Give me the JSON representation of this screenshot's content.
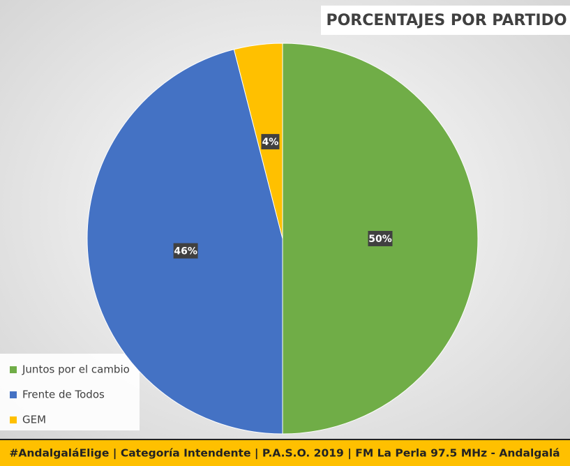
{
  "chart_data": {
    "type": "pie",
    "title": "PORCENTAJES POR PARTIDO",
    "categories": [
      "Juntos por el cambio",
      "Frente de Todos",
      "GEM"
    ],
    "values": [
      50,
      46,
      4
    ],
    "value_labels": [
      "50%",
      "46%",
      "4%"
    ],
    "colors": [
      "#70ad47",
      "#4472c4",
      "#ffc000"
    ],
    "legend": "bottom-left",
    "footer": "#AndalgaláElige | Categoría Intendente | P.A.S.O. 2019 | FM La Perla 97.5 MHz - Andalgalá"
  }
}
